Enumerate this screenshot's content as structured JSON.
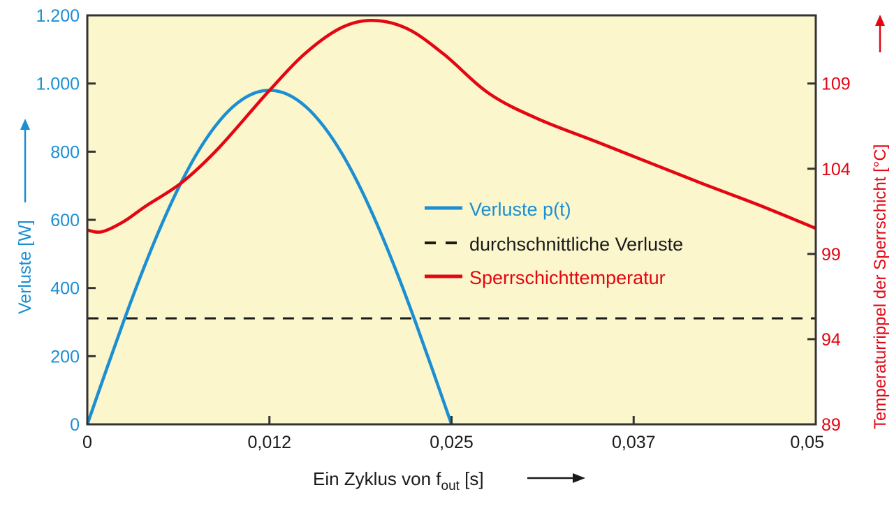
{
  "chart_data": {
    "type": "line",
    "title": "",
    "xlabel": "Ein Zyklus von f",
    "xlabel_sub": "out",
    "xlabel_unit": " [s]",
    "ylabel_left": "Verluste [W]",
    "ylabel_right": "Temperaturrippel der Sperrschicht [°C]",
    "xlim": [
      0,
      0.05
    ],
    "ylim_left": [
      0,
      1200
    ],
    "ylim_right": [
      89,
      113
    ],
    "x_ticks": [
      {
        "value": 0,
        "label": "0"
      },
      {
        "value": 0.0125,
        "label": "0,012"
      },
      {
        "value": 0.025,
        "label": "0,025"
      },
      {
        "value": 0.0375,
        "label": "0,037"
      },
      {
        "value": 0.05,
        "label": "0,05"
      }
    ],
    "y_left_ticks": [
      {
        "value": 0,
        "label": "0"
      },
      {
        "value": 200,
        "label": "200"
      },
      {
        "value": 400,
        "label": "400"
      },
      {
        "value": 600,
        "label": "600"
      },
      {
        "value": 800,
        "label": "800"
      },
      {
        "value": 1000,
        "label": "1.000"
      },
      {
        "value": 1200,
        "label": "1.200"
      }
    ],
    "y_right_ticks": [
      {
        "value": 89,
        "label": "89"
      },
      {
        "value": 94,
        "label": "94"
      },
      {
        "value": 99,
        "label": "99"
      },
      {
        "value": 104,
        "label": "104"
      },
      {
        "value": 109,
        "label": "109"
      }
    ],
    "legend_position": "center-right",
    "series": [
      {
        "name": "Verluste p(t)",
        "axis": "left",
        "color": "#1b8fd2",
        "style": "solid",
        "x": [
          0,
          0.00125,
          0.0025,
          0.00375,
          0.005,
          0.00625,
          0.0075,
          0.00875,
          0.01,
          0.01125,
          0.0125,
          0.01375,
          0.015,
          0.01625,
          0.0175,
          0.01875,
          0.02,
          0.02125,
          0.0225,
          0.02375,
          0.025
        ],
        "y": [
          0,
          153,
          303,
          445,
          576,
          693,
          793,
          873,
          932,
          968,
          980,
          968,
          932,
          873,
          793,
          693,
          576,
          445,
          303,
          153,
          0
        ]
      },
      {
        "name": "durchschnittliche Verluste",
        "axis": "left",
        "color": "#1a1a1a",
        "style": "dashed",
        "x": [
          0,
          0.05
        ],
        "y": [
          311,
          311
        ]
      },
      {
        "name": "Sperrschichttemperatur",
        "axis": "right",
        "color": "#e30613",
        "style": "solid",
        "x": [
          0,
          0.001,
          0.0025,
          0.004,
          0.0065,
          0.009,
          0.0124,
          0.015,
          0.0175,
          0.0197,
          0.022,
          0.0245,
          0.0276,
          0.031,
          0.0352,
          0.042,
          0.046,
          0.05
        ],
        "y": [
          100.4,
          100.3,
          100.9,
          101.8,
          103.2,
          105.2,
          108.5,
          110.8,
          112.3,
          112.7,
          112.2,
          110.7,
          108.4,
          106.9,
          105.5,
          103.2,
          101.9,
          100.5
        ]
      }
    ],
    "colors": {
      "background": "#fbf6cc",
      "left_axis": "#1b8fd2",
      "right_axis": "#e30613"
    }
  }
}
